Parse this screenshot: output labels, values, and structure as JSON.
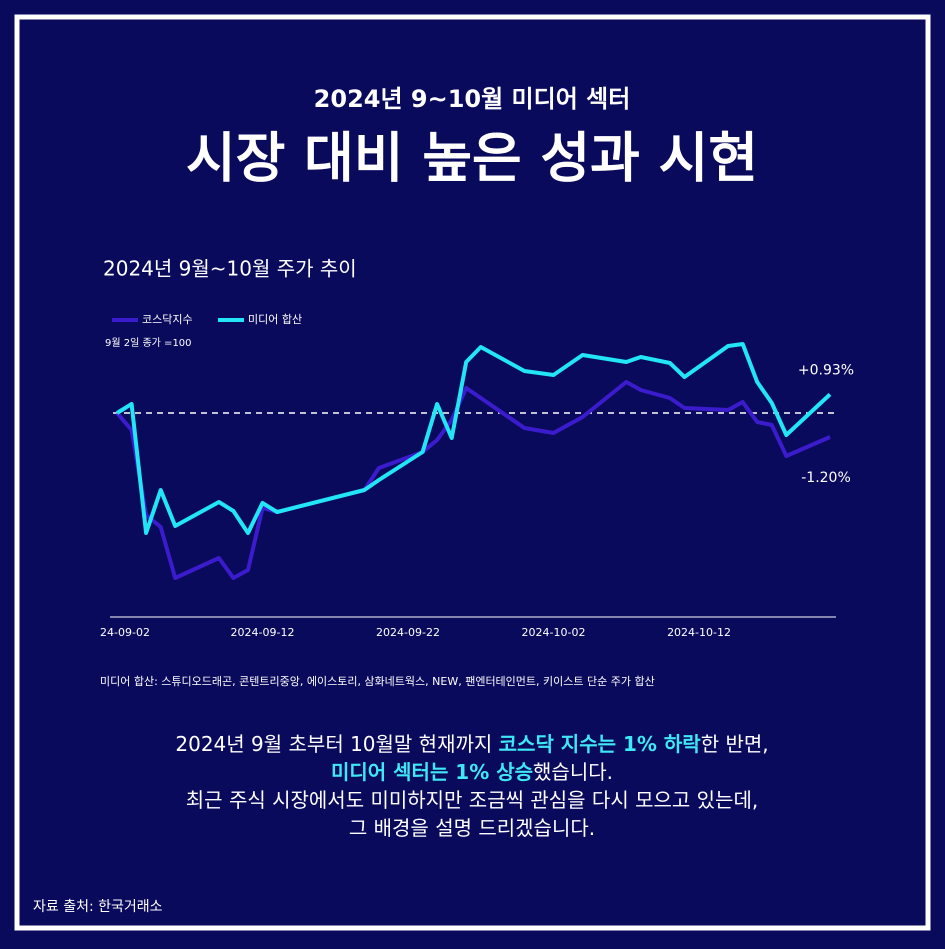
{
  "header": {
    "subtitle": "2024년 9~10월 미디어 섹터",
    "title": "시장 대비 높은 성과 시현"
  },
  "chart_data": {
    "type": "line",
    "title": "2024년 9월~10월 주가 추이",
    "note": "9월 2일 종가 =100",
    "reference_line": 100,
    "x": [
      "2024-09-02",
      "2024-09-03",
      "2024-09-04",
      "2024-09-05",
      "2024-09-06",
      "2024-09-09",
      "2024-09-10",
      "2024-09-11",
      "2024-09-12",
      "2024-09-13",
      "2024-09-19",
      "2024-09-20",
      "2024-09-23",
      "2024-09-24",
      "2024-09-25",
      "2024-09-26",
      "2024-09-27",
      "2024-09-30",
      "2024-10-02",
      "2024-10-04",
      "2024-10-07",
      "2024-10-08",
      "2024-10-10",
      "2024-10-11",
      "2024-10-14",
      "2024-10-15",
      "2024-10-16",
      "2024-10-17",
      "2024-10-18",
      "2024-10-21"
    ],
    "series": [
      {
        "name": "코스닥지수",
        "color": "#3b1ccc",
        "values": [
          100,
          99.15,
          94.9,
          94.3,
          91.75,
          92.75,
          91.75,
          92.15,
          95.25,
          95.05,
          96.15,
          97.25,
          98.05,
          98.65,
          99.65,
          101.25,
          100.75,
          99.25,
          99.0,
          99.8,
          101.55,
          101.15,
          100.75,
          100.25,
          100.15,
          100.55,
          99.55,
          99.4,
          97.85,
          98.8
        ]
      },
      {
        "name": "미디어 합산",
        "color": "#22e5f5",
        "values": [
          100,
          100.45,
          94.0,
          96.15,
          94.35,
          95.55,
          95.1,
          94.0,
          95.5,
          95.05,
          96.15,
          96.65,
          98.05,
          100.45,
          98.75,
          102.55,
          103.3,
          102.1,
          101.9,
          102.9,
          102.55,
          102.8,
          102.5,
          101.8,
          103.35,
          103.45,
          101.55,
          100.5,
          98.9,
          100.93
        ]
      }
    ],
    "xticks": [
      {
        "value": "2024-09-02",
        "label": "24-09-02"
      },
      {
        "value": "2024-09-12",
        "label": "2024-09-12"
      },
      {
        "value": "2024-09-22",
        "label": "2024-09-22"
      },
      {
        "value": "2024-10-02",
        "label": "2024-10-02"
      },
      {
        "value": "2024-10-12",
        "label": "2024-10-12"
      }
    ],
    "annotations": [
      {
        "text": "+0.93%",
        "value": 0.93,
        "series": 1
      },
      {
        "text": "-1.20%",
        "value": -1.2,
        "series": 0
      }
    ],
    "footnote": "미디어 합산: 스튜디오드래곤, 콘텐트리중앙, 에이스토리, 삼화네트웍스, NEW, 팬엔터테인먼트, 키이스트 단순 주가 합산"
  },
  "body": {
    "highlight_color": "#3ee8f6",
    "lines": [
      [
        {
          "text": "2024년 9월 초부터 10월말 현재까지 ",
          "highlight": false
        },
        {
          "text": "코스닥 지수는 1% 하락",
          "highlight": true
        },
        {
          "text": "한 반면,",
          "highlight": false
        }
      ],
      [
        {
          "text": "미디어 섹터는 1% 상승",
          "highlight": true
        },
        {
          "text": "했습니다.",
          "highlight": false
        }
      ],
      [
        {
          "text": "최근 주식 시장에서도 미미하지만 조금씩 관심을 다시 모으고 있는데,",
          "highlight": false
        }
      ],
      [
        {
          "text": "그 배경을 설명 드리겠습니다.",
          "highlight": false
        }
      ]
    ]
  },
  "source": "자료 출처: 한국거래소"
}
